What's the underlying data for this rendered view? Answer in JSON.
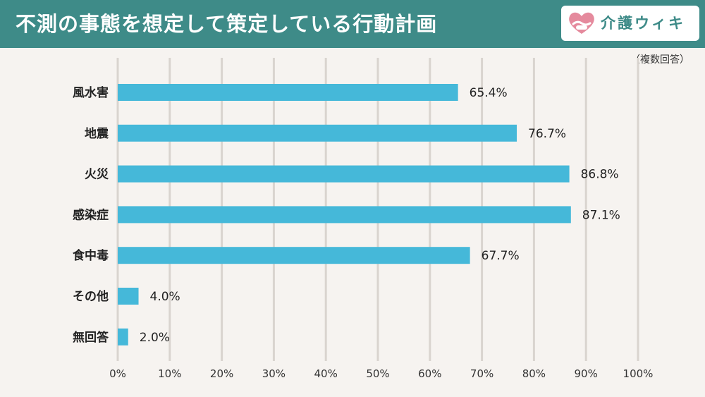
{
  "header": {
    "title": "不測の事態を想定して策定している行動計画",
    "logo_text": "介護ウィキ",
    "logo_icon": "heart-hands-icon"
  },
  "note": "（複数回答）",
  "colors": {
    "header_bg": "#3e8b88",
    "bar": "#45b8d9",
    "gridline": "#d9d4cf",
    "background": "#f6f3f0",
    "logo_heart": "#e58a9d"
  },
  "chart_data": {
    "type": "bar",
    "orientation": "horizontal",
    "categories": [
      "風水害",
      "地震",
      "火災",
      "感染症",
      "食中毒",
      "その他",
      "無回答"
    ],
    "values": [
      65.4,
      76.7,
      86.8,
      87.1,
      67.7,
      4.0,
      2.0
    ],
    "value_labels": [
      "65.4%",
      "76.7%",
      "86.8%",
      "87.1%",
      "67.7%",
      "4.0%",
      "2.0%"
    ],
    "xlim": [
      0,
      100
    ],
    "x_ticks": [
      "0%",
      "10%",
      "20%",
      "30%",
      "40%",
      "50%",
      "60%",
      "70%",
      "80%",
      "90%",
      "100%"
    ],
    "grid": true,
    "legend": "none"
  }
}
